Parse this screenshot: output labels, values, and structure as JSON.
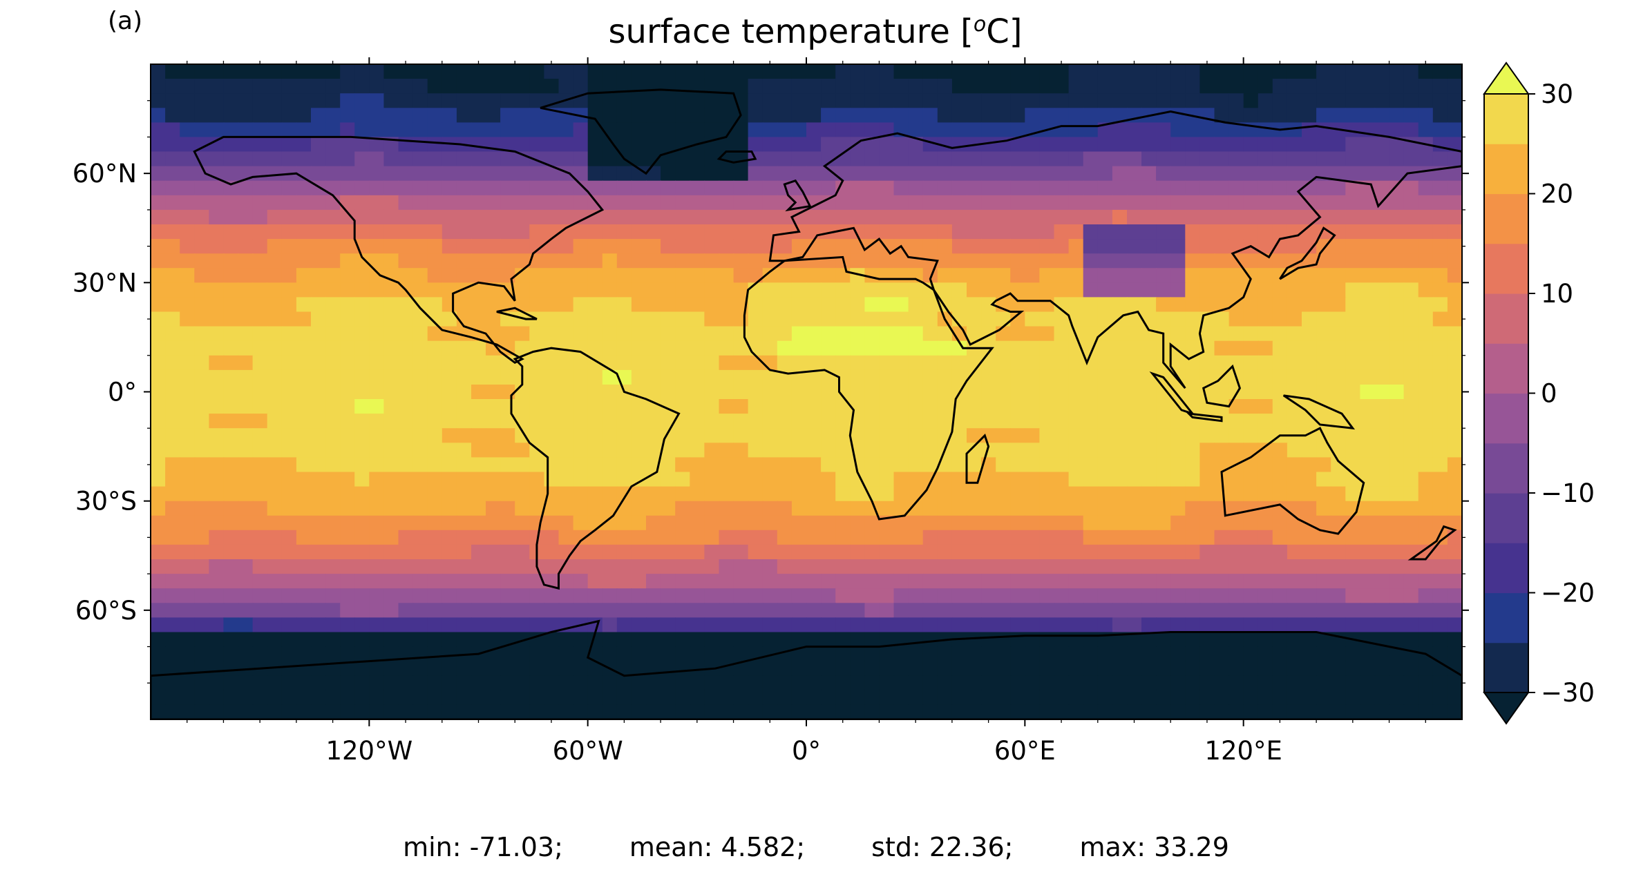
{
  "panel_label": "(a)",
  "title": {
    "text": "surface temperature [",
    "sup": "o",
    "unit": "C]"
  },
  "lat_ticks": [
    "60°N",
    "30°N",
    "0°",
    "30°S",
    "60°S"
  ],
  "lon_ticks": [
    "120°W",
    "60°W",
    "0°",
    "60°E",
    "120°E"
  ],
  "colorbar": {
    "tick_labels": [
      "30",
      "20",
      "10",
      "0",
      "−10",
      "−20",
      "−30"
    ],
    "levels": [
      -30,
      -25,
      -20,
      -15,
      -10,
      -5,
      0,
      5,
      10,
      15,
      20,
      25,
      30
    ],
    "extend": "both",
    "colors": [
      "#062233",
      "#13294f",
      "#233a8c",
      "#46338f",
      "#5d3f92",
      "#784a96",
      "#975597",
      "#b45f8c",
      "#cf6a76",
      "#e7785e",
      "#f39247",
      "#f7b03d",
      "#f2d84d",
      "#e9f853"
    ]
  },
  "chart_data": {
    "type": "heatmap",
    "title": "surface temperature [oC]",
    "projection": "PlateCarree",
    "lon_range": [
      -180,
      180
    ],
    "lat_range": [
      -90,
      90
    ],
    "vmin": -30,
    "vmax": 30,
    "colormap": "thermal",
    "coastlines": true
  },
  "stats": {
    "min": "min: -71.03;",
    "mean": "mean: 4.582;",
    "std": "std: 22.36;",
    "max": "max: 33.29"
  }
}
